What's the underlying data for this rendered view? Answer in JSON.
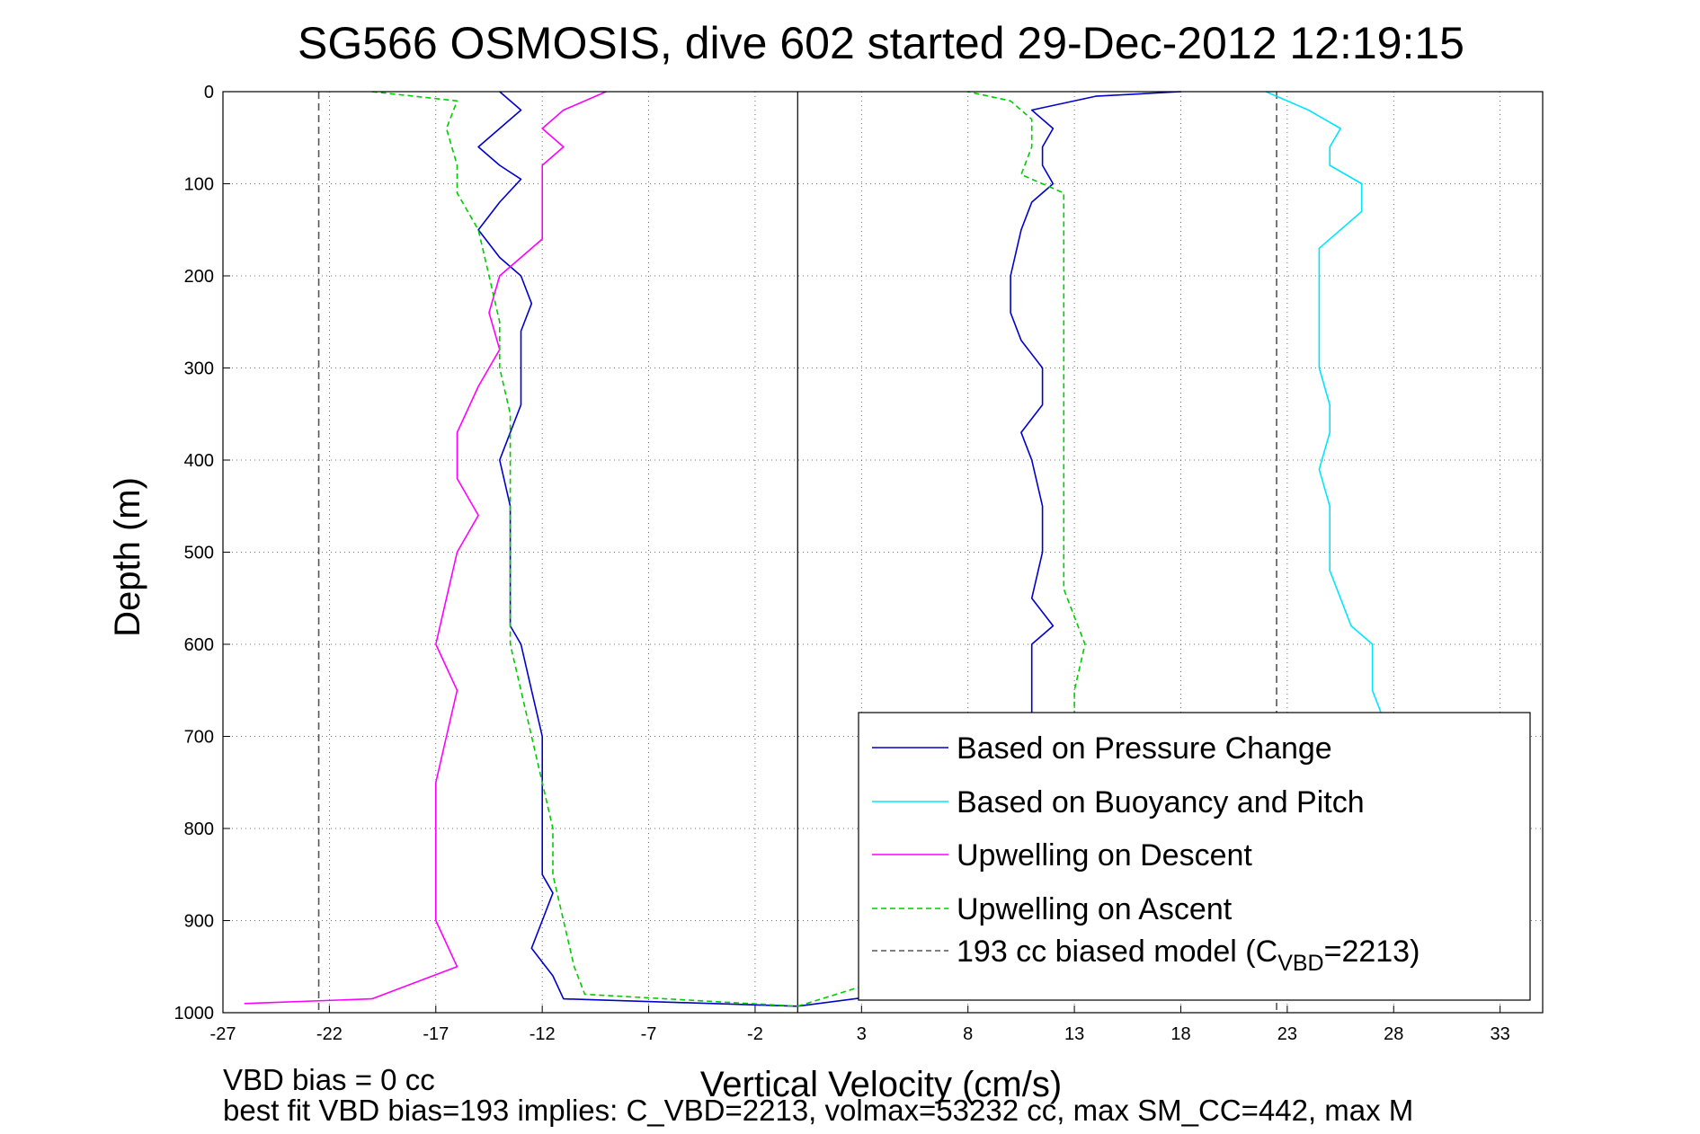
{
  "chart_data": {
    "type": "line",
    "title": "SG566 OSMOSIS, dive 602 started 29-Dec-2012 12:19:15",
    "xlabel": "Vertical Velocity (cm/s)",
    "ylabel": "Depth (m)",
    "xlim": [
      -27,
      35
    ],
    "ylim": [
      1000,
      0
    ],
    "xticks": [
      -27,
      -22,
      -17,
      -12,
      -7,
      -2,
      3,
      8,
      13,
      18,
      23,
      28,
      33
    ],
    "yticks": [
      0,
      100,
      200,
      300,
      400,
      500,
      600,
      700,
      800,
      900,
      1000
    ],
    "grid": true,
    "legend_position": "bottom-right",
    "footnote_1": "VBD bias = 0 cc",
    "footnote_2": "best fit VBD bias=193 implies: C_VBD=2213, volmax=53232 cc, max SM_CC=442, max M",
    "reference_lines": {
      "zero_line_x": 0,
      "biased_model_x": [
        -22.5,
        22.5
      ]
    },
    "series": [
      {
        "name": "Based on Pressure Change",
        "color": "#0000cc",
        "style": "solid",
        "depth": [
          0,
          20,
          40,
          60,
          80,
          95,
          120,
          150,
          180,
          200,
          230,
          260,
          300,
          340,
          370,
          400,
          450,
          500,
          550,
          580,
          600,
          650,
          700,
          750,
          800,
          850,
          870,
          900,
          930,
          960,
          985,
          993
        ],
        "descent_velocity": [
          -14,
          -13,
          -14,
          -15,
          -14,
          -13,
          -14,
          -15,
          -14,
          -13,
          -12.5,
          -13,
          -13,
          -13,
          -13.5,
          -14,
          -13.5,
          -13.5,
          -13.5,
          -13.5,
          -13,
          -12.5,
          -12,
          -12,
          -12,
          -12,
          -11.5,
          -12,
          -12.5,
          -11.5,
          -11,
          0
        ],
        "ascent_depth": [
          993,
          960,
          930,
          900,
          850,
          800,
          750,
          700,
          650,
          600,
          580,
          550,
          500,
          450,
          400,
          370,
          340,
          300,
          270,
          240,
          200,
          150,
          120,
          100,
          80,
          60,
          40,
          20,
          5,
          0
        ],
        "ascent_velocity": [
          0,
          11,
          11,
          11,
          11,
          11,
          11,
          11,
          11,
          11,
          12,
          11,
          11.5,
          11.5,
          11,
          10.5,
          11.5,
          11.5,
          10.5,
          10,
          10,
          10.5,
          11,
          12,
          11.5,
          11.5,
          12,
          11,
          14,
          18
        ]
      },
      {
        "name": "Based on Buoyancy and Pitch",
        "color": "#00e5ff",
        "style": "solid",
        "depth": [
          0,
          20,
          40,
          60,
          80,
          100,
          130,
          170,
          200,
          250,
          300,
          340,
          370,
          410,
          450,
          480,
          520,
          550,
          580,
          600,
          650,
          680
        ],
        "velocity": [
          22,
          24,
          25.5,
          25,
          25,
          26.5,
          26.5,
          24.5,
          24.5,
          24.5,
          24.5,
          25,
          25,
          24.5,
          25,
          25,
          25,
          25.5,
          26,
          27,
          27,
          27.5
        ]
      },
      {
        "name": "Upwelling on Descent",
        "color": "#ff00ff",
        "style": "solid",
        "depth": [
          0,
          20,
          40,
          60,
          80,
          100,
          130,
          160,
          200,
          240,
          280,
          320,
          370,
          420,
          460,
          500,
          550,
          600,
          650,
          700,
          750,
          800,
          850,
          900,
          950,
          985,
          990
        ],
        "velocity": [
          -9,
          -11,
          -12,
          -11,
          -12,
          -12,
          -12,
          -12,
          -14,
          -14.5,
          -14,
          -15,
          -16,
          -16,
          -15,
          -16,
          -16.5,
          -17,
          -16,
          -16.5,
          -17,
          -17,
          -17,
          -17,
          -16,
          -20,
          -26
        ]
      },
      {
        "name": "Upwelling on Ascent",
        "color": "#00cc00",
        "style": "dashed",
        "depth": [
          0,
          10,
          40,
          80,
          110,
          150,
          200,
          250,
          300,
          350,
          400,
          450,
          500,
          550,
          580,
          600,
          650,
          700,
          750,
          800,
          850,
          900,
          950,
          980,
          993
        ],
        "descent_velocity": [
          -20,
          -16,
          -16.5,
          -16,
          -16,
          -15,
          -14.5,
          -14,
          -14,
          -13.5,
          -13.5,
          -13.5,
          -13.5,
          -13.5,
          -13.5,
          -13.5,
          -13,
          -12.5,
          -12,
          -11.5,
          -11.5,
          -11,
          -10.5,
          -10,
          0
        ],
        "ascent_depth": [
          993,
          900,
          800,
          700,
          650,
          600,
          570,
          540,
          500,
          450,
          400,
          350,
          300,
          250,
          200,
          150,
          110,
          90,
          60,
          30,
          10,
          0
        ],
        "ascent_velocity": [
          0,
          13,
          13,
          13,
          13,
          13.5,
          13,
          12.5,
          12.5,
          12.5,
          12.5,
          12.5,
          12.5,
          12.5,
          12.5,
          12.5,
          12.5,
          10.5,
          11,
          11,
          10,
          8
        ]
      },
      {
        "name": "193 cc biased model (C_VBD=2213)",
        "color": "#555555",
        "style": "dashed"
      }
    ]
  },
  "legend": {
    "entries": [
      {
        "label": "Based on Pressure Change",
        "color": "#0000cc",
        "dash": ""
      },
      {
        "label": "Based on Buoyancy and Pitch",
        "color": "#00e5ff",
        "dash": ""
      },
      {
        "label": "Upwelling on Descent",
        "color": "#ff00ff",
        "dash": ""
      },
      {
        "label": "Upwelling on Ascent",
        "color": "#00cc00",
        "dash": "6,4"
      },
      {
        "label_prefix": "193 cc biased model (C",
        "label_sub": "VBD",
        "label_suffix": "=2213)",
        "color": "#555555",
        "dash": "6,4"
      }
    ]
  }
}
